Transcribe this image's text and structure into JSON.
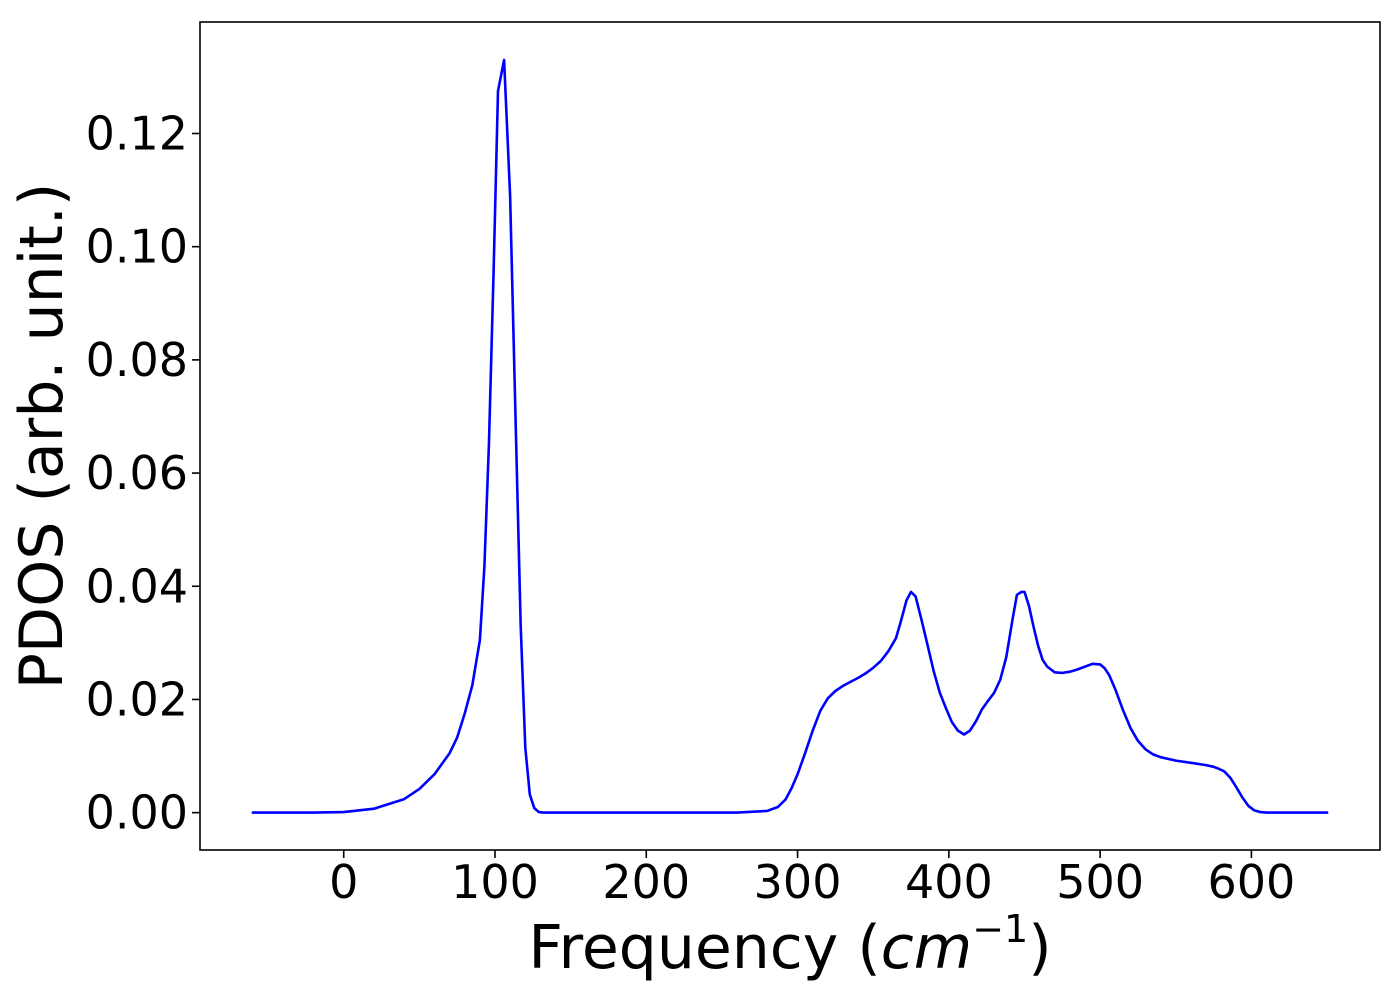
{
  "chart_data": {
    "type": "line",
    "title": "",
    "xlabel_main": "Frequency (",
    "xlabel_var": "cm",
    "xlabel_exp": "−1",
    "xlabel_close": ")",
    "ylabel": "PDOS (arb. unit.)",
    "xlim": [
      -95,
      685
    ],
    "ylim": [
      -0.0066,
      0.1397
    ],
    "xticks": [
      0,
      100,
      200,
      300,
      400,
      500,
      600
    ],
    "xtick_labels": [
      "0",
      "100",
      "200",
      "300",
      "400",
      "500",
      "600"
    ],
    "yticks": [
      0.0,
      0.02,
      0.04,
      0.06,
      0.08,
      0.1,
      0.12
    ],
    "ytick_labels": [
      "0.00",
      "0.02",
      "0.04",
      "0.06",
      "0.08",
      "0.10",
      "0.12"
    ],
    "grid": false,
    "legend": "none",
    "series": [
      {
        "color": "#0000ff",
        "x": [
          -60,
          -20,
          0,
          20,
          40,
          50,
          60,
          70,
          75,
          80,
          85,
          90,
          93,
          96,
          99,
          102,
          106,
          110,
          114,
          117,
          120,
          123,
          126,
          129,
          132,
          136,
          140,
          200,
          260,
          280,
          287,
          292,
          296,
          300,
          305,
          310,
          315,
          320,
          325,
          330,
          335,
          340,
          345,
          350,
          355,
          360,
          365,
          368,
          372,
          375,
          378,
          382,
          386,
          390,
          394,
          398,
          402,
          406,
          410,
          414,
          418,
          422,
          426,
          430,
          434,
          438,
          442,
          445,
          448,
          450,
          453,
          456,
          459,
          462,
          465,
          470,
          475,
          480,
          485,
          490,
          495,
          500,
          503,
          506,
          510,
          515,
          520,
          525,
          530,
          535,
          540,
          550,
          560,
          570,
          575,
          578,
          582,
          586,
          590,
          594,
          598,
          602,
          606,
          610,
          650
        ],
        "y": [
          0.0,
          0.0,
          0.0001,
          0.0007,
          0.0024,
          0.0042,
          0.0068,
          0.0105,
          0.0133,
          0.0175,
          0.0225,
          0.0305,
          0.0435,
          0.065,
          0.095,
          0.1275,
          0.133,
          0.109,
          0.065,
          0.033,
          0.0115,
          0.0032,
          0.0008,
          0.0001,
          0.0,
          0.0,
          0.0,
          0.0,
          0.0,
          0.0003,
          0.001,
          0.0023,
          0.0043,
          0.0068,
          0.0105,
          0.0145,
          0.018,
          0.0202,
          0.0215,
          0.0224,
          0.0231,
          0.0238,
          0.0246,
          0.0256,
          0.0268,
          0.0285,
          0.0308,
          0.0335,
          0.0375,
          0.039,
          0.0382,
          0.034,
          0.0295,
          0.025,
          0.0212,
          0.0185,
          0.016,
          0.0145,
          0.0138,
          0.0145,
          0.0162,
          0.0183,
          0.0198,
          0.0212,
          0.0235,
          0.0275,
          0.034,
          0.0385,
          0.039,
          0.039,
          0.0365,
          0.0328,
          0.0295,
          0.027,
          0.0258,
          0.0248,
          0.0247,
          0.0249,
          0.0253,
          0.0258,
          0.0263,
          0.0262,
          0.0255,
          0.0243,
          0.0218,
          0.0182,
          0.015,
          0.0127,
          0.0112,
          0.0103,
          0.0098,
          0.0092,
          0.0088,
          0.0084,
          0.0081,
          0.0078,
          0.0073,
          0.0062,
          0.0045,
          0.0027,
          0.0012,
          0.0004,
          0.0001,
          0.0,
          0.0
        ]
      }
    ]
  }
}
